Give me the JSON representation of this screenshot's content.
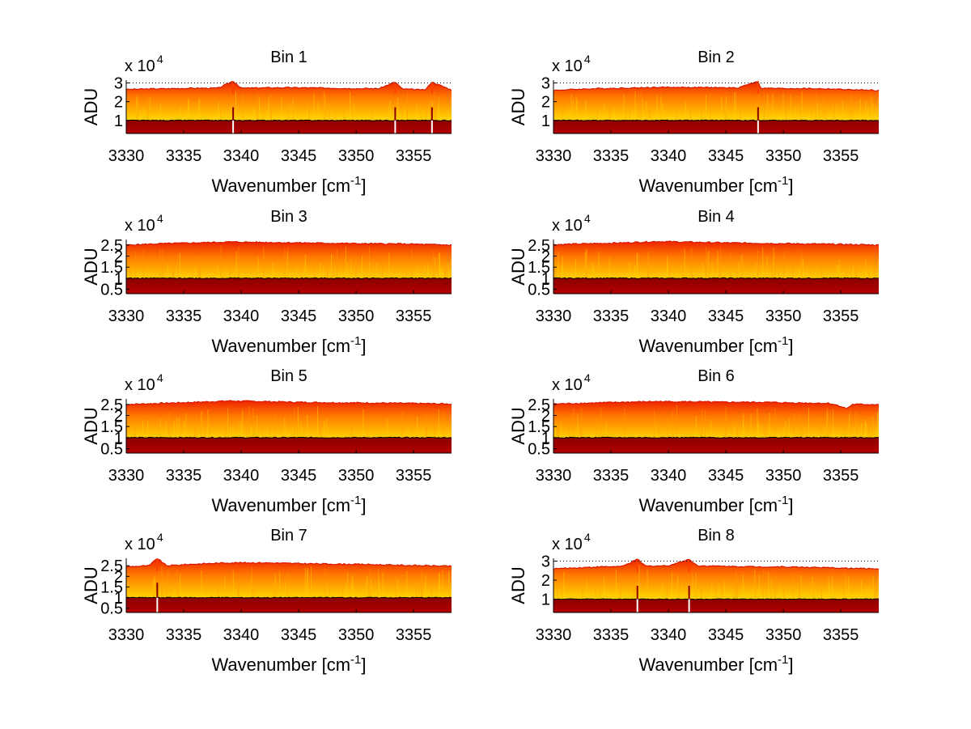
{
  "figure": {
    "background": "#ffffff",
    "colors": {
      "dark_red": "#a00000",
      "red": "#ee2200",
      "orange": "#ff6a00",
      "yellow": "#ffff33",
      "line": "#000000"
    }
  },
  "chart_data": [
    {
      "type": "area",
      "title": "Bin 1",
      "xlabel": "Wavenumber [cm",
      "xlabel_sup": "-1",
      "xlabel_end": "]",
      "ylabel": "ADU",
      "exponent_base": "x 10",
      "exponent_power": "4",
      "xlim": [
        3330,
        3358.3
      ],
      "ylim": [
        0.3,
        3.15
      ],
      "xticks": [
        3330,
        3335,
        3340,
        3345,
        3350,
        3355
      ],
      "yticks": [
        1,
        2,
        3
      ],
      "base_level": 1.0,
      "top_level": 2.72,
      "dotted_ref": 3.0,
      "spikes": [
        3339.3,
        3353.4,
        3356.6
      ],
      "x": [
        3330,
        3332,
        3334,
        3336,
        3338,
        3339.3,
        3340,
        3342,
        3344,
        3346,
        3348,
        3350,
        3352,
        3353.4,
        3354,
        3356,
        3356.6,
        3358.3
      ],
      "top": [
        2.65,
        2.68,
        2.7,
        2.72,
        2.72,
        3.1,
        2.72,
        2.74,
        2.75,
        2.74,
        2.72,
        2.7,
        2.7,
        3.05,
        2.68,
        2.62,
        3.05,
        2.62
      ]
    },
    {
      "type": "area",
      "title": "Bin 2",
      "xlabel": "Wavenumber [cm",
      "xlabel_sup": "-1",
      "xlabel_end": "]",
      "ylabel": "ADU",
      "exponent_base": "x 10",
      "exponent_power": "4",
      "xlim": [
        3330,
        3358.3
      ],
      "ylim": [
        0.3,
        3.15
      ],
      "xticks": [
        3330,
        3335,
        3340,
        3345,
        3350,
        3355
      ],
      "yticks": [
        1,
        2,
        3
      ],
      "base_level": 1.0,
      "top_level": 2.72,
      "dotted_ref": 3.0,
      "spikes": [
        3347.8
      ],
      "x": [
        3330,
        3332,
        3334,
        3336,
        3338,
        3340,
        3342,
        3344,
        3346,
        3347.8,
        3348,
        3350,
        3352,
        3354,
        3356,
        3358.3
      ],
      "top": [
        2.6,
        2.66,
        2.7,
        2.72,
        2.75,
        2.77,
        2.76,
        2.75,
        2.73,
        3.1,
        2.72,
        2.7,
        2.7,
        2.68,
        2.63,
        2.6
      ]
    },
    {
      "type": "area",
      "title": "Bin 3",
      "xlabel": "Wavenumber [cm",
      "xlabel_sup": "-1",
      "xlabel_end": "]",
      "ylabel": "ADU",
      "exponent_base": "x 10",
      "exponent_power": "4",
      "xlim": [
        3330,
        3358.3
      ],
      "ylim": [
        0.3,
        2.75
      ],
      "xticks": [
        3330,
        3335,
        3340,
        3345,
        3350,
        3355
      ],
      "yticks": [
        0.5,
        1,
        1.5,
        2,
        2.5
      ],
      "base_level": 1.0,
      "top_level": 2.55,
      "dotted_ref": null,
      "spikes": [],
      "x": [
        3330,
        3333,
        3336,
        3339,
        3342,
        3345,
        3348,
        3351,
        3354,
        3358.3
      ],
      "top": [
        2.5,
        2.56,
        2.6,
        2.64,
        2.62,
        2.6,
        2.58,
        2.56,
        2.55,
        2.5
      ]
    },
    {
      "type": "area",
      "title": "Bin 4",
      "xlabel": "Wavenumber [cm",
      "xlabel_sup": "-1",
      "xlabel_end": "]",
      "ylabel": "ADU",
      "exponent_base": "x 10",
      "exponent_power": "4",
      "xlim": [
        3330,
        3358.3
      ],
      "ylim": [
        0.3,
        2.75
      ],
      "xticks": [
        3330,
        3335,
        3340,
        3345,
        3350,
        3355
      ],
      "yticks": [
        0.5,
        1,
        1.5,
        2,
        2.5
      ],
      "base_level": 1.0,
      "top_level": 2.55,
      "dotted_ref": null,
      "spikes": [],
      "x": [
        3330,
        3333,
        3336,
        3339,
        3342,
        3345,
        3348,
        3351,
        3354,
        3358.3
      ],
      "top": [
        2.52,
        2.56,
        2.6,
        2.66,
        2.63,
        2.6,
        2.58,
        2.56,
        2.54,
        2.5
      ]
    },
    {
      "type": "area",
      "title": "Bin 5",
      "xlabel": "Wavenumber [cm",
      "xlabel_sup": "-1",
      "xlabel_end": "]",
      "ylabel": "ADU",
      "exponent_base": "x 10",
      "exponent_power": "4",
      "xlim": [
        3330,
        3358.3
      ],
      "ylim": [
        0.3,
        2.75
      ],
      "xticks": [
        3330,
        3335,
        3340,
        3345,
        3350,
        3355
      ],
      "yticks": [
        0.5,
        1,
        1.5,
        2,
        2.5
      ],
      "base_level": 1.0,
      "top_level": 2.55,
      "dotted_ref": null,
      "spikes": [],
      "x": [
        3330,
        3333,
        3336,
        3339,
        3342,
        3345,
        3348,
        3351,
        3354,
        3358.3
      ],
      "top": [
        2.5,
        2.55,
        2.6,
        2.66,
        2.63,
        2.6,
        2.58,
        2.57,
        2.55,
        2.52
      ]
    },
    {
      "type": "area",
      "title": "Bin 6",
      "xlabel": "Wavenumber [cm",
      "xlabel_sup": "-1",
      "xlabel_end": "]",
      "ylabel": "ADU",
      "exponent_base": "x 10",
      "exponent_power": "4",
      "xlim": [
        3330,
        3358.3
      ],
      "ylim": [
        0.3,
        2.75
      ],
      "xticks": [
        3330,
        3335,
        3340,
        3345,
        3350,
        3355
      ],
      "yticks": [
        0.5,
        1,
        1.5,
        2,
        2.5
      ],
      "base_level": 1.0,
      "top_level": 2.55,
      "dotted_ref": null,
      "spikes": [],
      "x": [
        3330,
        3333,
        3336,
        3339,
        3342,
        3345,
        3348,
        3351,
        3354,
        3355,
        3355.5,
        3356,
        3358.3
      ],
      "top": [
        2.52,
        2.56,
        2.6,
        2.63,
        2.62,
        2.6,
        2.6,
        2.57,
        2.55,
        2.42,
        2.3,
        2.5,
        2.5
      ]
    },
    {
      "type": "area",
      "title": "Bin 7",
      "xlabel": "Wavenumber [cm",
      "xlabel_sup": "-1",
      "xlabel_end": "]",
      "ylabel": "ADU",
      "exponent_base": "x 10",
      "exponent_power": "4",
      "xlim": [
        3330,
        3358.3
      ],
      "ylim": [
        0.3,
        2.85
      ],
      "xticks": [
        3330,
        3335,
        3340,
        3345,
        3350,
        3355
      ],
      "yticks": [
        0.5,
        1,
        1.5,
        2,
        2.5
      ],
      "base_level": 1.0,
      "top_level": 2.55,
      "dotted_ref": null,
      "spikes": [
        3332.7
      ],
      "x": [
        3330,
        3332,
        3332.7,
        3333.5,
        3336,
        3339,
        3342,
        3345,
        3348,
        3351,
        3354,
        3358.3
      ],
      "top": [
        2.45,
        2.5,
        2.85,
        2.5,
        2.58,
        2.64,
        2.64,
        2.6,
        2.58,
        2.56,
        2.52,
        2.48
      ]
    },
    {
      "type": "area",
      "title": "Bin 8",
      "xlabel": "Wavenumber [cm",
      "xlabel_sup": "-1",
      "xlabel_end": "]",
      "ylabel": "ADU",
      "exponent_base": "x 10",
      "exponent_power": "4",
      "xlim": [
        3330,
        3358.3
      ],
      "ylim": [
        0.3,
        3.15
      ],
      "xticks": [
        3330,
        3335,
        3340,
        3345,
        3350,
        3355
      ],
      "yticks": [
        1,
        2,
        3
      ],
      "base_level": 1.0,
      "top_level": 2.72,
      "dotted_ref": 3.0,
      "spikes": [
        3337.3,
        3341.8
      ],
      "x": [
        3330,
        3332,
        3334,
        3336,
        3337.3,
        3338,
        3340,
        3341.8,
        3342.5,
        3344,
        3346,
        3348,
        3350,
        3352,
        3354,
        3356,
        3358.3
      ],
      "top": [
        2.6,
        2.65,
        2.7,
        2.72,
        3.1,
        2.74,
        2.76,
        3.1,
        2.76,
        2.74,
        2.72,
        2.7,
        2.7,
        2.68,
        2.65,
        2.62,
        2.6
      ]
    }
  ]
}
